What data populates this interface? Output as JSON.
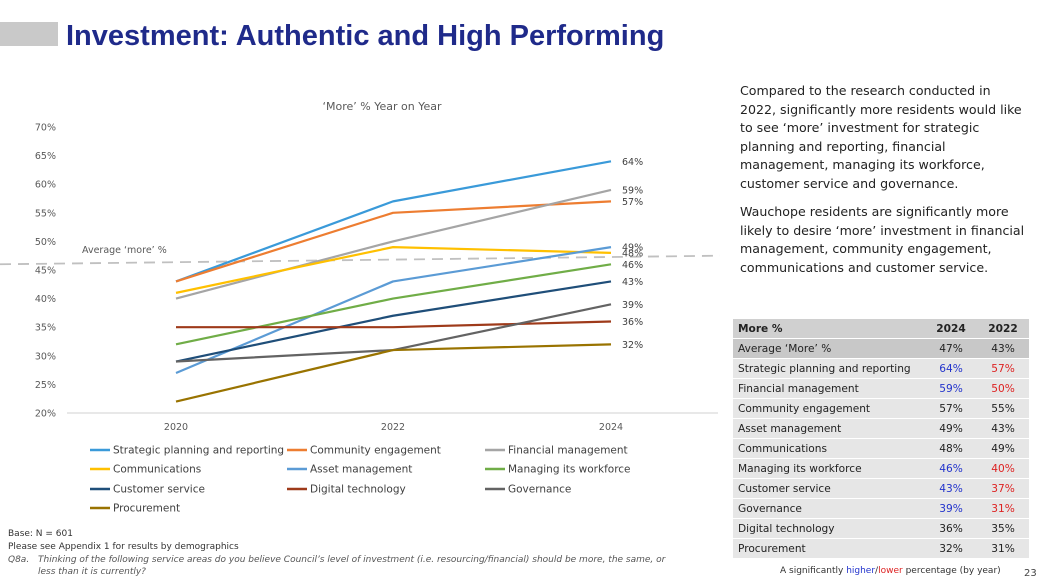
{
  "page": {
    "title": "Investment: Authentic and High Performing",
    "page_number": "23"
  },
  "commentary": {
    "p1": "Compared to the research conducted in 2022, significantly more residents would like to see ‘more’ investment for strategic planning and reporting, financial management, managing its workforce, customer service and governance.",
    "p2": "Wauchope residents are significantly more likely to desire ‘more’ investment in financial management, community engagement, communications and customer service."
  },
  "colors": {
    "title": "#1f2a8a",
    "higher": "#2233cc",
    "lower": "#dd2222"
  },
  "chart_data": {
    "type": "line",
    "title": "‘More’ % Year on Year",
    "x": [
      "2020",
      "2022",
      "2024"
    ],
    "ylim": [
      20,
      70
    ],
    "yticks": [
      20,
      25,
      30,
      35,
      40,
      45,
      50,
      55,
      60,
      65,
      70
    ],
    "ytick_labels": [
      "20%",
      "25%",
      "30%",
      "35%",
      "40%",
      "45%",
      "50%",
      "55%",
      "60%",
      "65%",
      "70%"
    ],
    "grid": false,
    "legend_position": "bottom",
    "reference_line": {
      "label": "Average ‘more’ %",
      "value_start": 46,
      "value_end": 47.5
    },
    "series": [
      {
        "name": "Strategic planning and reporting",
        "color": "#3a9ad9",
        "values": [
          43,
          57,
          64
        ],
        "end_label": "64%"
      },
      {
        "name": "Community engagement",
        "color": "#ed7d31",
        "values": [
          43,
          55,
          57
        ],
        "end_label": "57%"
      },
      {
        "name": "Financial management",
        "color": "#a5a5a5",
        "values": [
          40,
          50,
          59
        ],
        "end_label": "59%"
      },
      {
        "name": "Communications",
        "color": "#ffc000",
        "values": [
          41,
          49,
          48
        ],
        "end_label": "48%"
      },
      {
        "name": "Asset management",
        "color": "#5b9bd5",
        "values": [
          27,
          43,
          49
        ],
        "end_label": "49%"
      },
      {
        "name": "Managing its workforce",
        "color": "#70ad47",
        "values": [
          32,
          40,
          46
        ],
        "end_label": "46%"
      },
      {
        "name": "Customer service",
        "color": "#1f4e79",
        "values": [
          29,
          37,
          43
        ],
        "end_label": "43%"
      },
      {
        "name": "Digital technology",
        "color": "#9e3a1a",
        "values": [
          35,
          35,
          36
        ],
        "end_label": "36%"
      },
      {
        "name": "Governance",
        "color": "#636363",
        "values": [
          29,
          31,
          39
        ],
        "end_label": "39%"
      },
      {
        "name": "Procurement",
        "color": "#997300",
        "values": [
          22,
          31,
          32
        ],
        "end_label": "32%"
      }
    ]
  },
  "table": {
    "headers": [
      "More %",
      "2024",
      "2022"
    ],
    "rows": [
      {
        "label": "Average ‘More’ %",
        "v2024": "47%",
        "v2022": "43%",
        "sig": "avg"
      },
      {
        "label": "Strategic planning and reporting",
        "v2024": "64%",
        "v2022": "57%",
        "sig": "sig"
      },
      {
        "label": "Financial management",
        "v2024": "59%",
        "v2022": "50%",
        "sig": "sig"
      },
      {
        "label": "Community engagement",
        "v2024": "57%",
        "v2022": "55%",
        "sig": "none"
      },
      {
        "label": "Asset management",
        "v2024": "49%",
        "v2022": "43%",
        "sig": "none"
      },
      {
        "label": "Communications",
        "v2024": "48%",
        "v2022": "49%",
        "sig": "none"
      },
      {
        "label": "Managing its workforce",
        "v2024": "46%",
        "v2022": "40%",
        "sig": "sig"
      },
      {
        "label": "Customer service",
        "v2024": "43%",
        "v2022": "37%",
        "sig": "sig"
      },
      {
        "label": "Governance",
        "v2024": "39%",
        "v2022": "31%",
        "sig": "sig"
      },
      {
        "label": "Digital technology",
        "v2024": "36%",
        "v2022": "35%",
        "sig": "none"
      },
      {
        "label": "Procurement",
        "v2024": "32%",
        "v2022": "31%",
        "sig": "none"
      }
    ]
  },
  "footnotes": {
    "base": "Base: N = 601",
    "appendix": "Please see Appendix 1 for results by demographics",
    "question_label": "Q8a.",
    "question": "Thinking of the following service areas do you believe Council’s level of investment (i.e. resourcing/financial) should be more, the same, or less than it is currently?"
  },
  "significance_note": {
    "prefix": "A significantly ",
    "higher": "higher",
    "slash": "/",
    "lower": "lower",
    "suffix": " percentage (by year)"
  }
}
